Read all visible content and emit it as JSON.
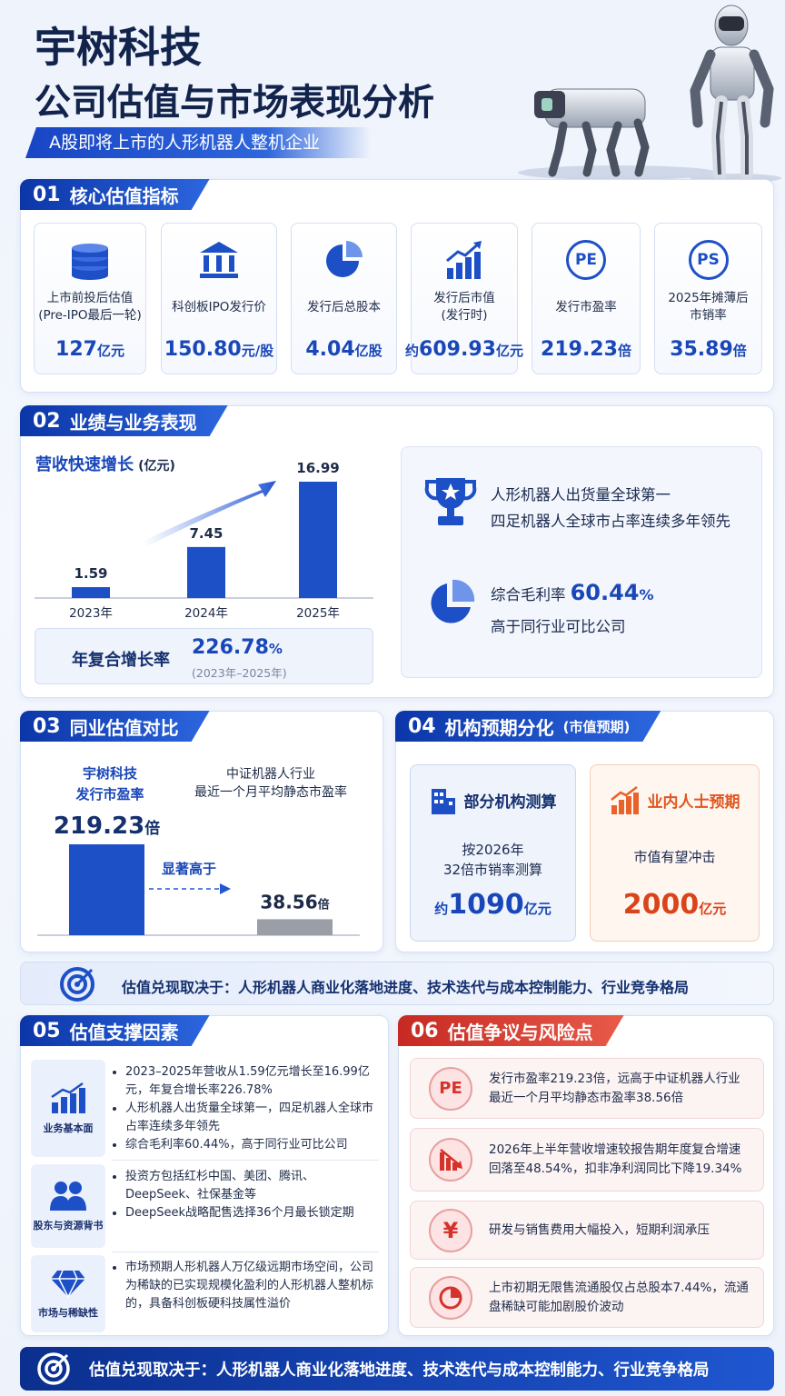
{
  "header": {
    "title": "宇树科技",
    "subtitle": "公司估值与市场表现分析",
    "tagline": "A股即将上市的人形机器人整机企业"
  },
  "valuation": {
    "number": "01",
    "title": "核心估值指标",
    "metrics": [
      {
        "label": [
          "上市前投后估值",
          "(Pre-IPO最后一轮)"
        ],
        "value": "127",
        "unit": "亿元"
      },
      {
        "label": [
          "科创板IPO发行价"
        ],
        "value": "150.80",
        "unit": "元/股"
      },
      {
        "label": [
          "发行后总股本"
        ],
        "value": "4.04",
        "unit": "亿股"
      },
      {
        "label": [
          "发行后市值",
          "(发行时)"
        ],
        "prefix": "约",
        "value": "609.93",
        "unit": "亿元"
      },
      {
        "icon": "PE",
        "label": [
          "发行市盈率"
        ],
        "value": "219.23",
        "unit": "倍"
      },
      {
        "icon": "PS",
        "label": [
          "2025年摊薄后",
          "市销率"
        ],
        "value": "35.89",
        "unit": "倍"
      }
    ]
  },
  "performance": {
    "number": "02",
    "title": "业绩与业务表现",
    "chart": {
      "title": "营收快速增长",
      "unit": "(亿元)",
      "categories": [
        "2023年",
        "2024年",
        "2025年"
      ],
      "values": [
        1.59,
        7.45,
        16.99
      ]
    },
    "cagr": {
      "label": "年复合增长率",
      "value": "226.78",
      "unit": "%",
      "period": "(2023年–2025年)"
    },
    "highlights": [
      "人形机器人出货量全球第一",
      "四足机器人全球市占率连续多年领先"
    ],
    "margin": {
      "label": "综合毛利率",
      "value": "60.44",
      "unit": "%",
      "note": "高于同行业可比公司"
    }
  },
  "peer_comparison": {
    "number": "03",
    "title": "同业估值对比",
    "company": {
      "lines": [
        "宇树科技",
        "发行市盈率"
      ],
      "value": 219.23,
      "unit": "倍"
    },
    "peer": {
      "lines": [
        "中证机器人行业",
        "最近一个月平均静态市盈率"
      ],
      "value": 38.56,
      "unit": "倍"
    },
    "comparison": "显著高于"
  },
  "expectations": {
    "number": "04",
    "title": "机构预期分化",
    "subtitle": "(市值预期)",
    "institutions": {
      "title": "部分机构测算",
      "lines": [
        "按2026年",
        "32倍市销率测算"
      ],
      "prefix": "约",
      "value": "1090",
      "unit": "亿元"
    },
    "insiders": {
      "title": "业内人士预期",
      "lines": [
        "市值有望冲击"
      ],
      "value": "2000",
      "unit": "亿元"
    }
  },
  "banner": "估值兑现取决于：人形机器人商业化落地进度、技术迭代与成本控制能力、行业竞争格局",
  "support": {
    "number": "05",
    "title": "估值支撑因素",
    "factors": [
      {
        "label": "业务基本面",
        "bullets": [
          "2023–2025年营收从1.59亿元增长至16.99亿元，年复合增长率226.78%",
          "人形机器人出货量全球第一，四足机器人全球市占率连续多年领先",
          "综合毛利率60.44%，高于同行业可比公司"
        ]
      },
      {
        "label": "股东与资源背书",
        "bullets": [
          "投资方包括红杉中国、美团、腾讯、DeepSeek、社保基金等",
          "DeepSeek战略配售选择36个月最长锁定期"
        ]
      },
      {
        "label": "市场与稀缺性",
        "bullets": [
          "市场预期人形机器人万亿级远期市场空间，公司为稀缺的已实现规模化盈利的人形机器人整机标的，具备科创板硬科技属性溢价"
        ]
      }
    ]
  },
  "risks": {
    "number": "06",
    "title": "估值争议与风险点",
    "items": [
      {
        "icon": "PE",
        "text": "发行市盈率219.23倍，远高于中证机器人行业最近一个月平均静态市盈率38.56倍"
      },
      {
        "text": "2026年上半年营收增速较报告期年度复合增速回落至48.54%，扣非净利润同比下降19.34%"
      },
      {
        "icon": "¥",
        "text": "研发与销售费用大幅投入，短期利润承压"
      },
      {
        "text": "上市初期无限售流通股仅占总股本7.44%，流通盘稀缺可能加剧股价波动"
      }
    ]
  },
  "footer": "估值兑现取决于：人形机器人商业化落地进度、技术迭代与成本控制能力、行业竞争格局"
}
